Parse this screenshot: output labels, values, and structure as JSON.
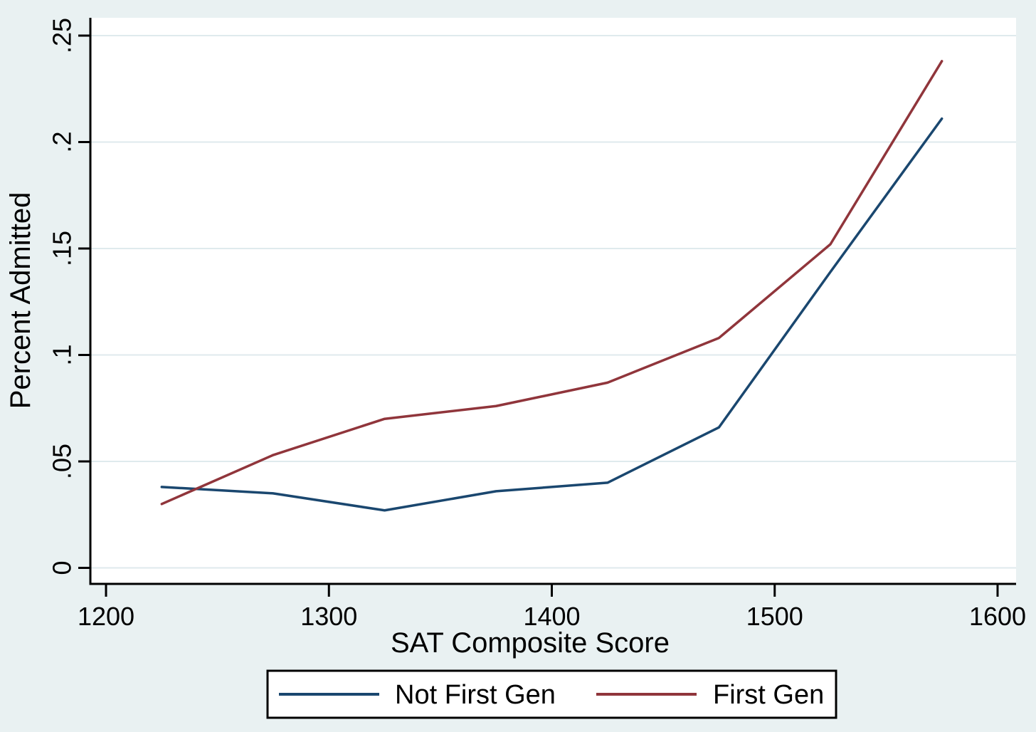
{
  "figure": {
    "background_color": "#e9f1f2",
    "plot_background_color": "#ffffff",
    "gridline_color": "#dfeaed",
    "axis_color": "#000000",
    "text_color": "#000000",
    "legend_border_color": "#000000",
    "legend_background_color": "#ffffff"
  },
  "chart_data": {
    "type": "line",
    "title": "",
    "xlabel": "SAT Composite Score",
    "ylabel": "Percent Admitted",
    "xlim": [
      1200,
      1600
    ],
    "ylim": [
      0,
      0.25
    ],
    "grid": true,
    "legend_position": "bottom",
    "x_ticks": [
      {
        "value": 1200,
        "label": "1200"
      },
      {
        "value": 1300,
        "label": "1300"
      },
      {
        "value": 1400,
        "label": "1400"
      },
      {
        "value": 1500,
        "label": "1500"
      },
      {
        "value": 1600,
        "label": "1600"
      }
    ],
    "y_ticks": [
      {
        "value": 0,
        "label": "0"
      },
      {
        "value": 0.05,
        "label": ".05"
      },
      {
        "value": 0.1,
        "label": ".1"
      },
      {
        "value": 0.15,
        "label": ".15"
      },
      {
        "value": 0.2,
        "label": ".2"
      },
      {
        "value": 0.25,
        "label": ".25"
      }
    ],
    "x": [
      1225,
      1275,
      1325,
      1375,
      1425,
      1475,
      1525,
      1575
    ],
    "series": [
      {
        "name": "Not First Gen",
        "color": "#1a476f",
        "values": [
          0.038,
          0.035,
          0.027,
          0.036,
          0.04,
          0.066,
          0.139,
          0.211
        ]
      },
      {
        "name": "First Gen",
        "color": "#90353b",
        "values": [
          0.03,
          0.053,
          0.07,
          0.076,
          0.087,
          0.108,
          0.152,
          0.238
        ]
      }
    ]
  }
}
